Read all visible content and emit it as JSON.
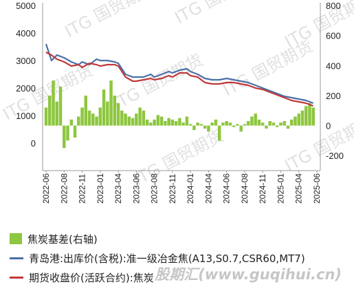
{
  "chart_data": {
    "type": "bar+line",
    "x_ticks": [
      "2022-06",
      "2022-08",
      "2022-11",
      "2023-01",
      "2023-04",
      "2023-06",
      "2023-08",
      "2023-11",
      "2024-01",
      "2024-04",
      "2024-06",
      "2024-08",
      "2024-11",
      "2025-01",
      "2025-04",
      "2025-06"
    ],
    "y_left": {
      "ticks": [
        5000,
        4000,
        3000,
        2000,
        1000,
        0
      ],
      "range": [
        -1000,
        5000
      ]
    },
    "y_right": {
      "ticks": [
        800,
        600,
        400,
        200,
        0,
        -200
      ],
      "range": [
        -300,
        800
      ]
    },
    "series": [
      {
        "name": "焦炭基差(右轴)",
        "type": "bar",
        "axis": "right",
        "color": "#8dc63f",
        "points": [
          [
            0,
            120
          ],
          [
            0.2,
            200
          ],
          [
            0.4,
            300
          ],
          [
            0.6,
            160
          ],
          [
            0.8,
            260
          ],
          [
            1.0,
            -150
          ],
          [
            1.2,
            -100
          ],
          [
            1.4,
            40
          ],
          [
            1.6,
            -80
          ],
          [
            1.8,
            60
          ],
          [
            2.0,
            120
          ],
          [
            2.2,
            200
          ],
          [
            2.4,
            100
          ],
          [
            2.6,
            80
          ],
          [
            2.8,
            60
          ],
          [
            3.0,
            120
          ],
          [
            3.2,
            240
          ],
          [
            3.4,
            160
          ],
          [
            3.6,
            300
          ],
          [
            3.8,
            200
          ],
          [
            4.0,
            150
          ],
          [
            4.2,
            100
          ],
          [
            4.4,
            80
          ],
          [
            4.6,
            60
          ],
          [
            4.8,
            50
          ],
          [
            5.0,
            80
          ],
          [
            5.2,
            120
          ],
          [
            5.4,
            100
          ],
          [
            5.6,
            40
          ],
          [
            5.8,
            20
          ],
          [
            6.0,
            40
          ],
          [
            6.2,
            70
          ],
          [
            6.4,
            60
          ],
          [
            6.6,
            30
          ],
          [
            6.8,
            50
          ],
          [
            7.0,
            40
          ],
          [
            7.2,
            30
          ],
          [
            7.4,
            50
          ],
          [
            7.6,
            20
          ],
          [
            7.8,
            60
          ],
          [
            8.0,
            10
          ],
          [
            8.2,
            -30
          ],
          [
            8.4,
            20
          ],
          [
            8.6,
            10
          ],
          [
            8.8,
            -20
          ],
          [
            9.0,
            -40
          ],
          [
            9.2,
            20
          ],
          [
            9.4,
            40
          ],
          [
            9.6,
            -100
          ],
          [
            9.8,
            20
          ],
          [
            10.0,
            30
          ],
          [
            10.2,
            20
          ],
          [
            10.4,
            -10
          ],
          [
            10.6,
            10
          ],
          [
            10.8,
            -40
          ],
          [
            11.0,
            10
          ],
          [
            11.2,
            30
          ],
          [
            11.4,
            60
          ],
          [
            11.6,
            80
          ],
          [
            11.8,
            40
          ],
          [
            12.0,
            20
          ],
          [
            12.2,
            -20
          ],
          [
            12.4,
            30
          ],
          [
            12.6,
            20
          ],
          [
            12.8,
            -10
          ],
          [
            13.0,
            20
          ],
          [
            13.2,
            30
          ],
          [
            13.4,
            -20
          ],
          [
            13.6,
            40
          ],
          [
            13.8,
            60
          ],
          [
            14.0,
            80
          ],
          [
            14.2,
            100
          ],
          [
            14.4,
            130
          ],
          [
            14.6,
            150
          ],
          [
            14.8,
            120
          ]
        ]
      },
      {
        "name": "青岛港:出库价(含税):准一级冶金焦(A13,S0.7,CSR60,MT7)",
        "type": "line",
        "axis": "left",
        "color": "#4a6fa5",
        "points": [
          [
            0,
            3600
          ],
          [
            0.3,
            3000
          ],
          [
            0.6,
            3200
          ],
          [
            1.0,
            3100
          ],
          [
            1.4,
            2950
          ],
          [
            1.8,
            2850
          ],
          [
            2.0,
            2950
          ],
          [
            2.4,
            2850
          ],
          [
            2.8,
            3050
          ],
          [
            3.0,
            3000
          ],
          [
            3.4,
            3000
          ],
          [
            3.8,
            2950
          ],
          [
            4.0,
            2900
          ],
          [
            4.4,
            2500
          ],
          [
            4.8,
            2400
          ],
          [
            5.0,
            2400
          ],
          [
            5.4,
            2400
          ],
          [
            5.8,
            2500
          ],
          [
            6.0,
            2400
          ],
          [
            6.4,
            2500
          ],
          [
            6.8,
            2600
          ],
          [
            7.0,
            2550
          ],
          [
            7.4,
            2650
          ],
          [
            7.8,
            2700
          ],
          [
            8.0,
            2600
          ],
          [
            8.4,
            2500
          ],
          [
            8.8,
            2350
          ],
          [
            9.2,
            2300
          ],
          [
            9.6,
            2300
          ],
          [
            10.0,
            2350
          ],
          [
            10.4,
            2300
          ],
          [
            10.8,
            2250
          ],
          [
            11.2,
            2200
          ],
          [
            11.6,
            2100
          ],
          [
            12.0,
            2000
          ],
          [
            12.4,
            1900
          ],
          [
            12.8,
            1800
          ],
          [
            13.2,
            1700
          ],
          [
            13.6,
            1650
          ],
          [
            14.0,
            1600
          ],
          [
            14.4,
            1550
          ],
          [
            14.8,
            1450
          ]
        ]
      },
      {
        "name": "期货收盘价(活跃合约):焦炭",
        "type": "line",
        "axis": "left",
        "color": "#c0393b",
        "points": [
          [
            0,
            3300
          ],
          [
            0.3,
            3200
          ],
          [
            0.6,
            3050
          ],
          [
            1.0,
            2950
          ],
          [
            1.4,
            2800
          ],
          [
            1.8,
            2850
          ],
          [
            2.0,
            2750
          ],
          [
            2.4,
            2900
          ],
          [
            2.8,
            2850
          ],
          [
            3.0,
            2800
          ],
          [
            3.4,
            2850
          ],
          [
            3.8,
            2850
          ],
          [
            4.0,
            2800
          ],
          [
            4.4,
            2400
          ],
          [
            4.8,
            2250
          ],
          [
            5.0,
            2250
          ],
          [
            5.4,
            2300
          ],
          [
            5.8,
            2350
          ],
          [
            6.0,
            2300
          ],
          [
            6.4,
            2350
          ],
          [
            6.8,
            2450
          ],
          [
            7.0,
            2400
          ],
          [
            7.4,
            2550
          ],
          [
            7.8,
            2550
          ],
          [
            8.0,
            2450
          ],
          [
            8.4,
            2400
          ],
          [
            8.8,
            2200
          ],
          [
            9.2,
            2150
          ],
          [
            9.6,
            2150
          ],
          [
            10.0,
            2200
          ],
          [
            10.4,
            2200
          ],
          [
            10.8,
            2150
          ],
          [
            11.2,
            2100
          ],
          [
            11.6,
            2000
          ],
          [
            12.0,
            1950
          ],
          [
            12.4,
            1850
          ],
          [
            12.8,
            1750
          ],
          [
            13.2,
            1650
          ],
          [
            13.6,
            1550
          ],
          [
            14.0,
            1500
          ],
          [
            14.4,
            1450
          ],
          [
            14.8,
            1350
          ]
        ]
      }
    ]
  },
  "watermarks": [
    "ITG 国贸期货",
    "ITG 国贸期货",
    "ITG 国贸期货",
    "ITG 国贸期货",
    "ITG 国贸期货",
    "ITG 国贸期货",
    "ITG 国贸期货",
    "ITG 国贸期货"
  ],
  "footer_watermark": "股期汇(www.guqihui.cn)"
}
